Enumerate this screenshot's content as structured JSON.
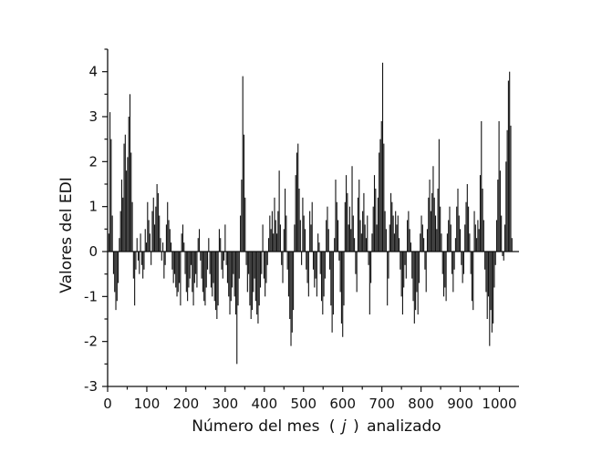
{
  "chart_data": {
    "type": "bar",
    "title": "",
    "xlabel_parts": [
      "Número del mes",
      "(",
      "j",
      ")",
      "analizado"
    ],
    "ylabel": "Valores del EDI",
    "xlim": [
      0,
      1050
    ],
    "ylim": [
      -3,
      4.5
    ],
    "xticks": [
      0,
      100,
      200,
      300,
      400,
      500,
      600,
      700,
      800,
      900,
      1000
    ],
    "xtick_labels": [
      "0",
      "100",
      "200",
      "300",
      "400",
      "500",
      "600",
      "700",
      "800",
      "900",
      "1000"
    ],
    "yticks": [
      -3,
      -2,
      -1,
      0,
      1,
      2,
      3,
      4
    ],
    "ytick_labels": [
      "-3",
      "-2",
      "-1",
      "0",
      "1",
      "2",
      "3",
      "4"
    ],
    "grid": false,
    "legend": "none",
    "x_step": 3,
    "x": [
      3,
      6,
      9,
      12,
      15,
      18,
      21,
      24,
      27,
      30,
      33,
      36,
      39,
      42,
      45,
      48,
      51,
      54,
      57,
      60,
      63,
      66,
      69,
      72,
      75,
      78,
      81,
      84,
      87,
      90,
      93,
      96,
      99,
      102,
      105,
      108,
      111,
      114,
      117,
      120,
      123,
      126,
      129,
      132,
      135,
      138,
      141,
      144,
      147,
      150,
      153,
      156,
      159,
      162,
      165,
      168,
      171,
      174,
      177,
      180,
      183,
      186,
      189,
      192,
      195,
      198,
      201,
      204,
      207,
      210,
      213,
      216,
      219,
      222,
      225,
      228,
      231,
      234,
      237,
      240,
      243,
      246,
      249,
      252,
      255,
      258,
      261,
      264,
      267,
      270,
      273,
      276,
      279,
      282,
      285,
      288,
      291,
      294,
      297,
      300,
      303,
      306,
      309,
      312,
      315,
      318,
      321,
      324,
      327,
      330,
      333,
      336,
      339,
      342,
      345,
      348,
      351,
      354,
      357,
      360,
      363,
      366,
      369,
      372,
      375,
      378,
      381,
      384,
      387,
      390,
      393,
      396,
      399,
      402,
      405,
      408,
      411,
      414,
      417,
      420,
      423,
      426,
      429,
      432,
      435,
      438,
      441,
      444,
      447,
      450,
      453,
      456,
      459,
      462,
      465,
      468,
      471,
      474,
      477,
      480,
      483,
      486,
      489,
      492,
      495,
      498,
      501,
      504,
      507,
      510,
      513,
      516,
      519,
      522,
      525,
      528,
      531,
      534,
      537,
      540,
      543,
      546,
      549,
      552,
      555,
      558,
      561,
      564,
      567,
      570,
      573,
      576,
      579,
      582,
      585,
      588,
      591,
      594,
      597,
      600,
      603,
      606,
      609,
      612,
      615,
      618,
      621,
      624,
      627,
      630,
      633,
      636,
      639,
      642,
      645,
      648,
      651,
      654,
      657,
      660,
      663,
      666,
      669,
      672,
      675,
      678,
      681,
      684,
      687,
      690,
      693,
      696,
      699,
      702,
      705,
      708,
      711,
      714,
      717,
      720,
      723,
      726,
      729,
      732,
      735,
      738,
      741,
      744,
      747,
      750,
      753,
      756,
      759,
      762,
      765,
      768,
      771,
      774,
      777,
      780,
      783,
      786,
      789,
      792,
      795,
      798,
      801,
      804,
      807,
      810,
      813,
      816,
      819,
      822,
      825,
      828,
      831,
      834,
      837,
      840,
      843,
      846,
      849,
      852,
      855,
      858,
      861,
      864,
      867,
      870,
      873,
      876,
      879,
      882,
      885,
      888,
      891,
      894,
      897,
      900,
      903,
      906,
      909,
      912,
      915,
      918,
      921,
      924,
      927,
      930,
      933,
      936,
      939,
      942,
      945,
      948,
      951,
      954,
      957,
      960,
      963,
      966,
      969,
      972,
      975,
      978,
      981,
      984,
      987,
      990,
      993,
      996,
      999,
      1002,
      1005,
      1008,
      1011,
      1014,
      1017,
      1020,
      1023,
      1026,
      1029,
      1032
    ],
    "values": [
      0.4,
      3.1,
      2.5,
      0.8,
      -0.5,
      -0.9,
      -1.3,
      -1.1,
      -0.7,
      0.3,
      0.9,
      1.6,
      1.2,
      2.4,
      2.6,
      1.8,
      2.1,
      3.0,
      3.5,
      2.2,
      1.1,
      -0.6,
      -1.2,
      -0.4,
      0.3,
      -0.2,
      -0.5,
      0.4,
      -0.3,
      -0.6,
      -0.4,
      0.5,
      0.2,
      1.1,
      0.7,
      0.4,
      -0.3,
      0.9,
      1.2,
      0.6,
      1.0,
      1.5,
      1.3,
      0.8,
      0.3,
      -0.2,
      0.2,
      -0.6,
      -0.3,
      0.6,
      1.1,
      0.7,
      0.5,
      0.2,
      -0.4,
      -0.7,
      -0.5,
      -0.8,
      -1.0,
      -0.9,
      -0.7,
      -1.2,
      0.4,
      0.6,
      0.2,
      -0.5,
      -0.9,
      -1.1,
      -0.8,
      -0.6,
      -0.3,
      -0.9,
      -1.2,
      -0.7,
      -0.5,
      -0.8,
      0.3,
      0.5,
      -0.2,
      -0.6,
      -0.9,
      -1.1,
      -1.2,
      -0.8,
      -0.4,
      0.3,
      -0.5,
      -0.8,
      -1.0,
      -0.7,
      -1.1,
      -1.3,
      -1.5,
      -1.2,
      0.5,
      0.3,
      -0.4,
      -0.6,
      -0.2,
      0.6,
      -0.3,
      -0.7,
      -1.0,
      -1.4,
      -1.1,
      -0.8,
      -0.5,
      -1.0,
      -1.4,
      -2.5,
      -1.2,
      -0.6,
      0.8,
      1.6,
      3.9,
      2.6,
      1.2,
      -0.3,
      -0.9,
      -0.5,
      -1.2,
      -1.5,
      -1.3,
      -0.9,
      -0.6,
      -1.1,
      -1.4,
      -1.6,
      -1.2,
      -0.8,
      -0.5,
      0.6,
      -0.6,
      -1.0,
      -0.7,
      -0.3,
      0.3,
      0.8,
      0.5,
      0.9,
      0.4,
      1.2,
      0.7,
      0.4,
      0.9,
      1.8,
      0.6,
      -0.3,
      -0.7,
      0.5,
      1.4,
      0.8,
      -0.4,
      -1.0,
      -1.5,
      -2.1,
      -1.8,
      -1.3,
      0.6,
      1.7,
      2.2,
      2.4,
      1.4,
      0.7,
      -0.3,
      1.2,
      0.8,
      0.5,
      -0.4,
      -0.7,
      -1.0,
      0.9,
      0.6,
      1.1,
      -0.4,
      -0.8,
      -0.6,
      -1.0,
      0.4,
      0.2,
      -0.5,
      -1.1,
      -1.4,
      -1.0,
      -0.6,
      0.7,
      1.0,
      0.5,
      -0.4,
      -1.2,
      -1.8,
      -1.4,
      0.3,
      1.6,
      1.1,
      0.7,
      -0.2,
      -0.9,
      -1.6,
      -1.9,
      -1.2,
      1.1,
      1.7,
      1.3,
      0.6,
      1.0,
      0.5,
      1.9,
      0.8,
      0.3,
      -0.5,
      -0.9,
      1.2,
      1.6,
      0.7,
      0.4,
      0.9,
      1.3,
      0.6,
      0.3,
      0.8,
      -0.3,
      -1.4,
      -0.7,
      0.4,
      1.0,
      1.7,
      1.4,
      0.6,
      1.2,
      2.2,
      2.5,
      2.9,
      4.2,
      2.4,
      0.9,
      0.5,
      -1.2,
      -0.6,
      0.6,
      1.3,
      1.1,
      0.8,
      0.4,
      0.9,
      0.6,
      0.8,
      0.3,
      -0.4,
      -1.0,
      -1.4,
      -0.8,
      -0.3,
      -0.6,
      0.7,
      0.9,
      0.5,
      0.2,
      -0.6,
      -1.1,
      -1.6,
      -1.3,
      -0.9,
      -1.4,
      -0.7,
      0.4,
      0.8,
      0.6,
      0.3,
      -0.4,
      -0.9,
      0.5,
      1.2,
      1.6,
      0.9,
      1.3,
      1.9,
      1.2,
      0.8,
      0.5,
      1.4,
      2.5,
      1.0,
      0.4,
      -0.5,
      -1.0,
      -0.8,
      -1.1,
      0.4,
      0.7,
      1.0,
      0.6,
      -0.5,
      -0.9,
      -0.4,
      0.3,
      1.0,
      1.4,
      0.8,
      0.5,
      -0.3,
      -0.7,
      -0.5,
      0.6,
      1.1,
      1.5,
      1.0,
      0.4,
      -0.5,
      -1.1,
      -1.3,
      0.9,
      0.6,
      0.3,
      0.7,
      0.5,
      1.7,
      2.9,
      1.4,
      0.7,
      -0.4,
      -0.9,
      -1.5,
      -1.0,
      -2.1,
      -1.3,
      -1.8,
      -1.6,
      -0.8,
      -0.3,
      0.7,
      1.6,
      2.9,
      1.8,
      0.8,
      -0.1,
      -0.2,
      0.6,
      2.0,
      2.7,
      3.8,
      4.0,
      2.8,
      0.3
    ]
  }
}
